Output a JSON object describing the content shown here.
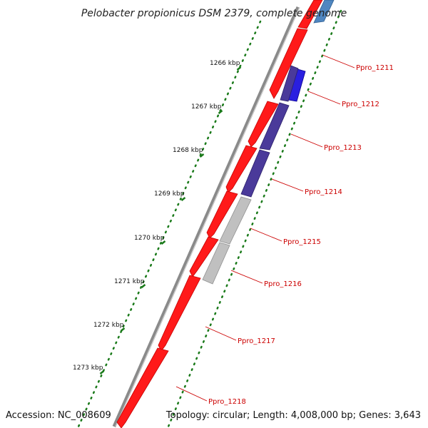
{
  "title": "Pelobacter propionicus DSM 2379, complete genome",
  "footer": {
    "accession": "Accession: NC_008609",
    "stats": "Topology: circular; Length: 4,008,000 bp; Genes: 3,643"
  },
  "colors": {
    "forward_gene": "#ff1a1a",
    "backbone": "#8a8a8a",
    "tick": "#1a7a1a",
    "label": "#cc0000",
    "reverse_blue": "#2a1fe0",
    "reverse_indigo": "#4a3a9a",
    "reverse_grey": "#c0c0c0",
    "reverse_steel": "#4f86c0"
  },
  "ticks": [
    {
      "label": "1266 kbp"
    },
    {
      "label": "1267 kbp"
    },
    {
      "label": "1268 kbp"
    },
    {
      "label": "1269 kbp"
    },
    {
      "label": "1270 kbp"
    },
    {
      "label": "1271 kbp"
    },
    {
      "label": "1272 kbp"
    },
    {
      "label": "1273 kbp"
    }
  ],
  "gene_labels": [
    {
      "label": "Ppro_1211"
    },
    {
      "label": "Ppro_1212"
    },
    {
      "label": "Ppro_1213"
    },
    {
      "label": "Ppro_1214"
    },
    {
      "label": "Ppro_1215"
    },
    {
      "label": "Ppro_1216"
    },
    {
      "label": "Ppro_1217"
    },
    {
      "label": "Ppro_1218"
    }
  ]
}
